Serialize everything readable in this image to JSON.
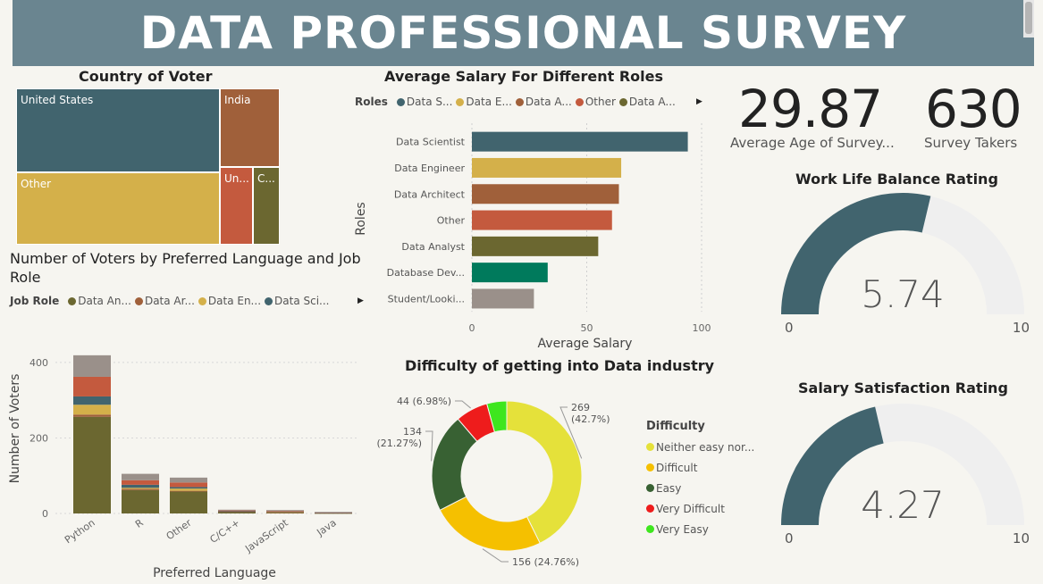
{
  "header": {
    "title": "DATA PROFESSIONAL SURVEY"
  },
  "kpis": [
    {
      "value": "29.87",
      "label": "Average Age of Survey..."
    },
    {
      "value": "630",
      "label": "Survey Takers"
    }
  ],
  "colors": {
    "teal": "#41646e",
    "gold": "#d4b04a",
    "brown": "#a0603a",
    "red": "#c45a3e",
    "olive": "#6b6730",
    "green": "#007a5c",
    "taupe": "#9a908a",
    "gauge_bg": "#efefef"
  },
  "chart_data": [
    {
      "id": "treemap",
      "type": "treemap",
      "title": "Country of Voter",
      "categories": [
        "United States",
        "Other",
        "India",
        "Un...",
        "C..."
      ],
      "colors": [
        "#41646e",
        "#d4b04a",
        "#a0603a",
        "#c45a3e",
        "#6b6730"
      ]
    },
    {
      "id": "salary",
      "type": "bar",
      "orientation": "horizontal",
      "title": "Average Salary For Different Roles",
      "legend_title": "Roles",
      "legend": [
        "Data S...",
        "Data E...",
        "Data A...",
        "Other",
        "Data A..."
      ],
      "legend_colors": [
        "#41646e",
        "#d4b04a",
        "#a0603a",
        "#c45a3e",
        "#6b6730"
      ],
      "categories": [
        "Data Scientist",
        "Data Engineer",
        "Data Architect",
        "Other",
        "Data Analyst",
        "Database Dev...",
        "Student/Looki..."
      ],
      "values": [
        94,
        65,
        64,
        61,
        55,
        33,
        27
      ],
      "colors": [
        "#41646e",
        "#d4b04a",
        "#a0603a",
        "#c45a3e",
        "#6b6730",
        "#007a5c",
        "#9a908a"
      ],
      "xlabel": "Average Salary",
      "ylabel": "Roles",
      "ticks": [
        0,
        50,
        100
      ],
      "xlim": [
        0,
        100
      ]
    },
    {
      "id": "lang",
      "type": "bar",
      "stacked": true,
      "title": "Number of Voters by Preferred Language and Job Role",
      "legend_title": "Job Role",
      "legend": [
        "Data An...",
        "Data Ar...",
        "Data En...",
        "Data Sci..."
      ],
      "legend_colors": [
        "#6b6730",
        "#a0603a",
        "#d4b04a",
        "#41646e"
      ],
      "categories": [
        "Python",
        "R",
        "Other",
        "C/C++",
        "JavaScript",
        "Java"
      ],
      "series": [
        {
          "color": "#6b6730",
          "values": [
            256,
            62,
            58,
            4,
            2,
            1
          ]
        },
        {
          "color": "#a0603a",
          "values": [
            6,
            3,
            2,
            1,
            1,
            0
          ]
        },
        {
          "color": "#d4b04a",
          "values": [
            26,
            3,
            6,
            0,
            1,
            0
          ]
        },
        {
          "color": "#41646e",
          "values": [
            22,
            8,
            4,
            1,
            1,
            1
          ]
        },
        {
          "color": "#c45a3e",
          "values": [
            52,
            12,
            12,
            2,
            1,
            1
          ]
        },
        {
          "color": "#9a908a",
          "values": [
            57,
            17,
            13,
            2,
            3,
            1
          ]
        }
      ],
      "xlabel": "Preferred Language",
      "ylabel": "Number of Voters",
      "ticks": [
        0,
        200,
        400
      ],
      "ylim": [
        0,
        440
      ]
    },
    {
      "id": "donut",
      "type": "pie",
      "donut": true,
      "title": "Difficulty of getting into Data industry",
      "legend_title": "Difficulty",
      "categories": [
        "Neither easy nor...",
        "Difficult",
        "Easy",
        "Very Difficult",
        "Very Easy"
      ],
      "values": [
        269,
        156,
        134,
        44,
        27
      ],
      "colors": [
        "#e5e13a",
        "#f5c000",
        "#386133",
        "#ee1c1c",
        "#3ee61e"
      ],
      "labels": [
        "269\n(42.7%)",
        "156 (24.76%)",
        "134\n(21.27%)",
        "44 (6.98%)",
        ""
      ]
    },
    {
      "id": "gauge1",
      "type": "gauge",
      "title": "Work Life Balance Rating",
      "value": 5.74,
      "display": "5.74",
      "min": 0,
      "max": 10,
      "min_label": "0",
      "max_label": "10"
    },
    {
      "id": "gauge2",
      "type": "gauge",
      "title": "Salary Satisfaction Rating",
      "value": 4.27,
      "display": "4.27",
      "min": 0,
      "max": 10,
      "min_label": "0",
      "max_label": "10"
    }
  ]
}
